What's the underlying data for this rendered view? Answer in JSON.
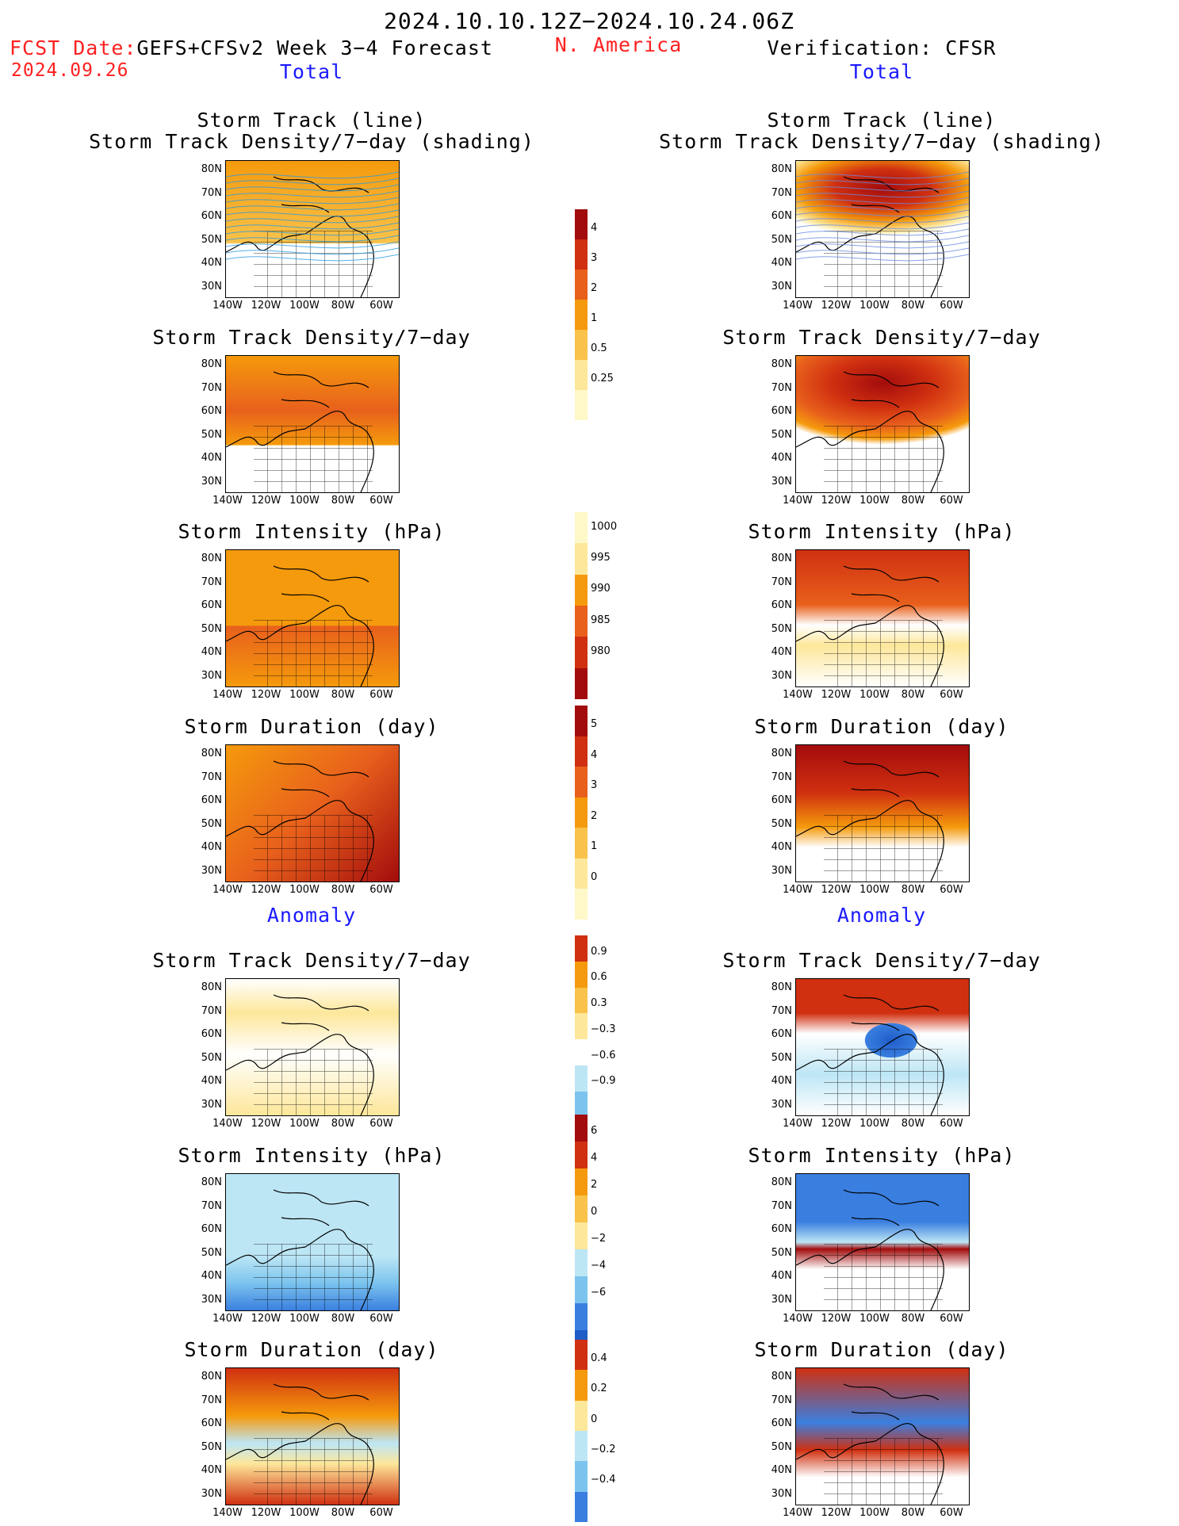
{
  "header": {
    "date_range": "2024.10.10.12Z−2024.10.24.06Z",
    "fcst_label": "FCST Date:",
    "model": "GEFS+CFSv2 Week 3−4 Forecast",
    "fcst_date": "2024.09.26",
    "region": "N. America",
    "verification": "Verification: CFSR"
  },
  "sections": {
    "total_left": "Total",
    "total_right": "Total",
    "anomaly_left": "Anomaly",
    "anomaly_right": "Anomaly"
  },
  "panel_titles": {
    "st_line": "Storm Track (line)",
    "st_shading": "Storm Track Density/7−day (shading)",
    "density": "Storm Track Density/7−day",
    "intensity": "Storm Intensity (hPa)",
    "duration": "Storm Duration (day)"
  },
  "axes": {
    "lat": [
      "80N",
      "70N",
      "60N",
      "50N",
      "40N",
      "30N"
    ],
    "lon": [
      "140W",
      "120W",
      "100W",
      "80W",
      "60W"
    ]
  },
  "colorbars": {
    "density_total": [
      "4",
      "3",
      "2",
      "1",
      "0.5",
      "0.25"
    ],
    "intensity_total": [
      "1000",
      "995",
      "990",
      "985",
      "980"
    ],
    "duration_total": [
      "5",
      "4",
      "3",
      "2",
      "1",
      "0"
    ],
    "density_anom": [
      "0.9",
      "0.6",
      "0.3",
      "−0.3",
      "−0.6",
      "−0.9"
    ],
    "intensity_anom": [
      "6",
      "4",
      "2",
      "0",
      "−2",
      "−4",
      "−6"
    ],
    "duration_anom": [
      "0.4",
      "0.2",
      "0",
      "−0.2",
      "−0.4"
    ]
  }
}
